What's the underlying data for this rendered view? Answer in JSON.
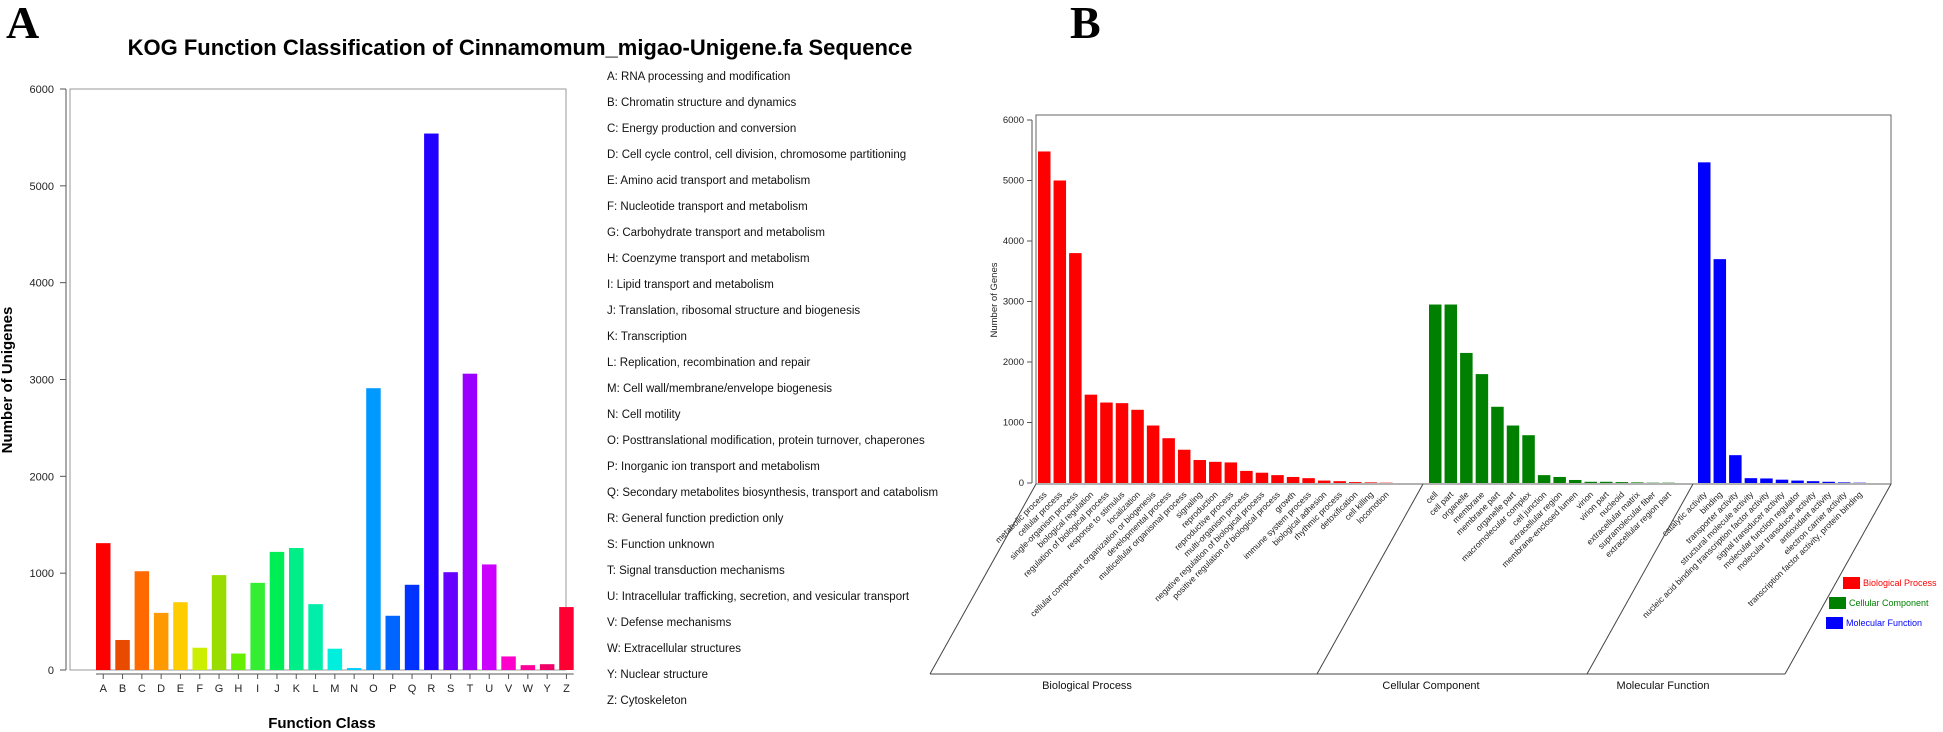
{
  "chart_data": [
    {
      "panel": "A",
      "type": "bar",
      "title": "KOG Function Classification of Cinnamomum_migao-Unigene.fa Sequence",
      "xlabel": "Function Class",
      "ylabel": "Number of Unigenes",
      "ylim": [
        0,
        6000
      ],
      "yticks": [
        0,
        1000,
        2000,
        3000,
        4000,
        5000,
        6000
      ],
      "grid": false,
      "categories": [
        "A",
        "B",
        "C",
        "D",
        "E",
        "F",
        "G",
        "H",
        "I",
        "J",
        "K",
        "L",
        "M",
        "N",
        "O",
        "P",
        "Q",
        "R",
        "S",
        "T",
        "U",
        "V",
        "W",
        "Y",
        "Z"
      ],
      "values": [
        1310,
        310,
        1020,
        590,
        700,
        230,
        980,
        170,
        900,
        1220,
        1260,
        680,
        220,
        20,
        2910,
        560,
        880,
        5540,
        1010,
        3060,
        1090,
        140,
        50,
        60,
        650
      ],
      "colors": [
        "#ff0000",
        "#e84a00",
        "#ff6a00",
        "#ff9900",
        "#ffcc00",
        "#ccee00",
        "#99dd00",
        "#66ee00",
        "#33ee33",
        "#00ee55",
        "#00ee88",
        "#00eeaa",
        "#00eedd",
        "#00ccff",
        "#0099ff",
        "#0066ff",
        "#0033ff",
        "#2200ff",
        "#6600ff",
        "#9900ff",
        "#cc00ff",
        "#ff00cc",
        "#ff0099",
        "#ee0066",
        "#ff0033"
      ],
      "legend_position": "right",
      "legend": [
        "A: RNA processing and modification",
        "B: Chromatin structure and dynamics",
        "C: Energy production and conversion",
        "D: Cell cycle control, cell division, chromosome partitioning",
        "E: Amino acid transport and metabolism",
        "F: Nucleotide transport and metabolism",
        "G: Carbohydrate transport and metabolism",
        "H: Coenzyme transport and metabolism",
        "I: Lipid transport and metabolism",
        "J: Translation, ribosomal structure and biogenesis",
        "K: Transcription",
        "L: Replication, recombination and repair",
        "M: Cell wall/membrane/envelope biogenesis",
        "N: Cell motility",
        "O: Posttranslational modification, protein turnover, chaperones",
        "P: Inorganic ion transport and metabolism",
        "Q: Secondary metabolites biosynthesis, transport and catabolism",
        "R: General function prediction only",
        "S: Function unknown",
        "T: Signal transduction mechanisms",
        "U: Intracellular trafficking, secretion, and vesicular transport",
        "V: Defense mechanisms",
        "W: Extracellular structures",
        "Y: Nuclear structure",
        "Z: Cytoskeleton"
      ]
    },
    {
      "panel": "B",
      "type": "bar",
      "ylabel": "Number of Genes",
      "ylim": [
        0,
        6000
      ],
      "yticks": [
        0,
        1000,
        2000,
        3000,
        4000,
        5000,
        6000
      ],
      "grid": false,
      "legend_position": "bottom-right",
      "series": [
        {
          "name": "Biological Process",
          "color": "#ff0000",
          "categories": [
            "metabolic process",
            "cellular process",
            "single-organism process",
            "biological regulation",
            "regulation of biological process",
            "response to stimulus",
            "localization",
            "cellular component organization or biogenesis",
            "developmental process",
            "multicellular organismal process",
            "signaling",
            "reproduction",
            "reproductive process",
            "multi-organism process",
            "negative regulation of biological process",
            "positive regulation of biological process",
            "growth",
            "immune system process",
            "biological adhesion",
            "rhythmic process",
            "detoxification",
            "cell killing",
            "locomotion"
          ],
          "values": [
            5480,
            5000,
            3800,
            1460,
            1330,
            1320,
            1210,
            950,
            740,
            550,
            380,
            350,
            340,
            200,
            170,
            130,
            100,
            80,
            40,
            30,
            15,
            10,
            5
          ]
        },
        {
          "name": "Cellular Component",
          "color": "#008000",
          "categories": [
            "cell",
            "cell part",
            "organelle",
            "membrane",
            "membrane part",
            "organelle part",
            "macromolecular complex",
            "cell junction",
            "extracellular region",
            "membrane-enclosed lumen",
            "virion",
            "virion part",
            "nucleoid",
            "extracellular matrix",
            "supramolecular fiber",
            "extracellular region part"
          ],
          "values": [
            2950,
            2950,
            2150,
            1800,
            1260,
            950,
            790,
            130,
            100,
            50,
            20,
            20,
            15,
            10,
            5,
            5
          ]
        },
        {
          "name": "Molecular Function",
          "color": "#0000ff",
          "categories": [
            "catalytic activity",
            "binding",
            "transporter activity",
            "structural molecule activity",
            "nucleic acid binding transcription factor activity",
            "signal transducer activity",
            "molecular function regulator",
            "molecular transducer activity",
            "antioxidant activity",
            "electron carrier activity",
            "transcription factor activity, protein binding"
          ],
          "values": [
            5300,
            3700,
            460,
            80,
            75,
            55,
            40,
            30,
            20,
            10,
            5
          ]
        }
      ]
    }
  ]
}
